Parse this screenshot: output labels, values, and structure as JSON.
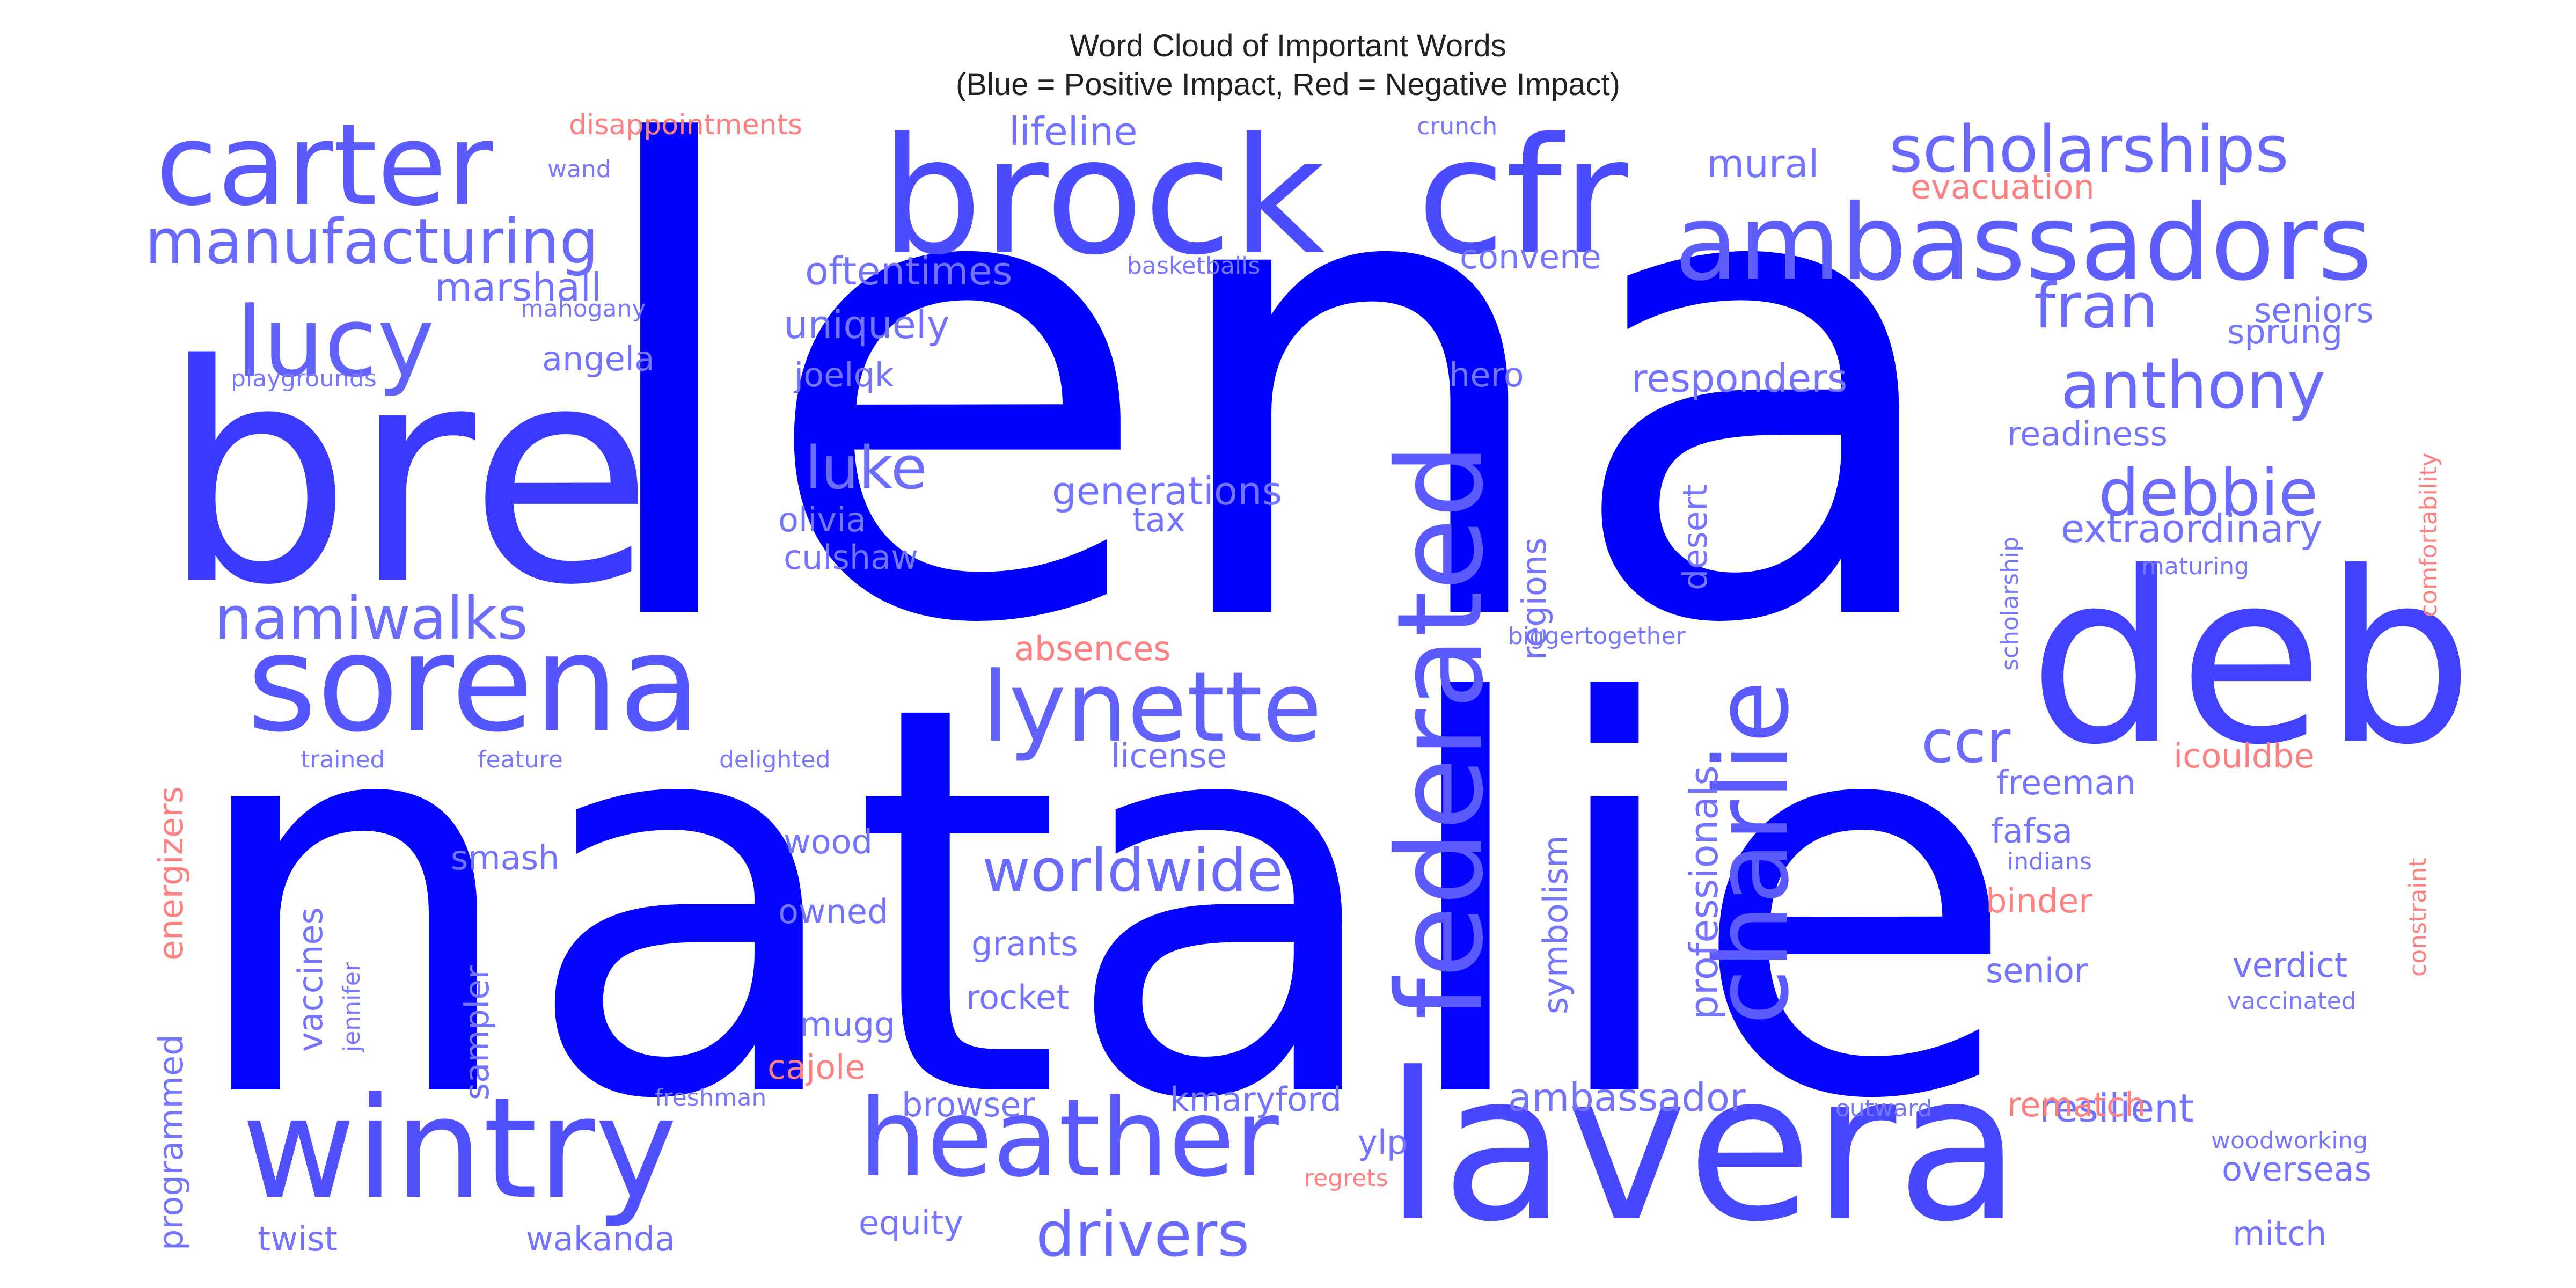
{
  "chart_data": {
    "type": "wordcloud",
    "title_line1": "Word Cloud of Important Words",
    "title_line2": "(Blue = Positive Impact, Red = Negative Impact)",
    "legend": {
      "positive_color": "#0000ff",
      "negative_color": "#ff8080"
    },
    "words": [
      {
        "text": "lena",
        "impact": "positive",
        "weight": 1.0
      },
      {
        "text": "natalie",
        "impact": "positive",
        "weight": 0.97
      },
      {
        "text": "bre",
        "impact": "positive",
        "weight": 0.55
      },
      {
        "text": "deb",
        "impact": "positive",
        "weight": 0.5
      },
      {
        "text": "lavera",
        "impact": "positive",
        "weight": 0.45
      },
      {
        "text": "brock",
        "impact": "positive",
        "weight": 0.42
      },
      {
        "text": "cfr",
        "impact": "positive",
        "weight": 0.42
      },
      {
        "text": "wintry",
        "impact": "positive",
        "weight": 0.38
      },
      {
        "text": "sorena",
        "impact": "positive",
        "weight": 0.33
      },
      {
        "text": "federated",
        "impact": "positive",
        "weight": 0.3
      },
      {
        "text": "charlie",
        "impact": "positive",
        "weight": 0.3
      },
      {
        "text": "carter",
        "impact": "positive",
        "weight": 0.3
      },
      {
        "text": "heather",
        "impact": "positive",
        "weight": 0.3
      },
      {
        "text": "ambassadors",
        "impact": "positive",
        "weight": 0.27
      },
      {
        "text": "lucy",
        "impact": "positive",
        "weight": 0.25
      },
      {
        "text": "lynette",
        "impact": "positive",
        "weight": 0.25
      },
      {
        "text": "scholarships",
        "impact": "positive",
        "weight": 0.19
      },
      {
        "text": "manufacturing",
        "impact": "positive",
        "weight": 0.18
      },
      {
        "text": "anthony",
        "impact": "positive",
        "weight": 0.18
      },
      {
        "text": "debbie",
        "impact": "positive",
        "weight": 0.18
      },
      {
        "text": "fran",
        "impact": "positive",
        "weight": 0.18
      },
      {
        "text": "drivers",
        "impact": "positive",
        "weight": 0.17
      },
      {
        "text": "worldwide",
        "impact": "positive",
        "weight": 0.17
      },
      {
        "text": "namiwalks",
        "impact": "positive",
        "weight": 0.16
      },
      {
        "text": "luke",
        "impact": "positive",
        "weight": 0.16
      },
      {
        "text": "ccr",
        "impact": "positive",
        "weight": 0.16
      },
      {
        "text": "extraordinary",
        "impact": "positive",
        "weight": 0.11
      },
      {
        "text": "generations",
        "impact": "positive",
        "weight": 0.11
      },
      {
        "text": "responders",
        "impact": "positive",
        "weight": 0.11
      },
      {
        "text": "resilient",
        "impact": "positive",
        "weight": 0.11
      },
      {
        "text": "ambassador",
        "impact": "positive",
        "weight": 0.11
      },
      {
        "text": "professionals",
        "impact": "positive",
        "weight": 0.11
      },
      {
        "text": "marshall",
        "impact": "positive",
        "weight": 0.11
      },
      {
        "text": "uniquely",
        "impact": "positive",
        "weight": 0.11
      },
      {
        "text": "oftentimes",
        "impact": "positive",
        "weight": 0.11
      },
      {
        "text": "lifeline",
        "impact": "positive",
        "weight": 0.11
      },
      {
        "text": "mural",
        "impact": "positive",
        "weight": 0.11
      },
      {
        "text": "convene",
        "impact": "positive",
        "weight": 0.1
      },
      {
        "text": "seniors",
        "impact": "positive",
        "weight": 0.1
      },
      {
        "text": "sprung",
        "impact": "positive",
        "weight": 0.1
      },
      {
        "text": "readiness",
        "impact": "positive",
        "weight": 0.1
      },
      {
        "text": "angela",
        "impact": "positive",
        "weight": 0.1
      },
      {
        "text": "joelqk",
        "impact": "positive",
        "weight": 0.1
      },
      {
        "text": "olivia",
        "impact": "positive",
        "weight": 0.1
      },
      {
        "text": "tax",
        "impact": "positive",
        "weight": 0.1
      },
      {
        "text": "culshaw",
        "impact": "positive",
        "weight": 0.1
      },
      {
        "text": "hero",
        "impact": "positive",
        "weight": 0.1
      },
      {
        "text": "regions",
        "impact": "positive",
        "weight": 0.1
      },
      {
        "text": "desert",
        "impact": "positive",
        "weight": 0.1
      },
      {
        "text": "license",
        "impact": "positive",
        "weight": 0.1
      },
      {
        "text": "freeman",
        "impact": "positive",
        "weight": 0.1
      },
      {
        "text": "fafsa",
        "impact": "positive",
        "weight": 0.1
      },
      {
        "text": "symbolism",
        "impact": "positive",
        "weight": 0.1
      },
      {
        "text": "smash",
        "impact": "positive",
        "weight": 0.1
      },
      {
        "text": "wood",
        "impact": "positive",
        "weight": 0.1
      },
      {
        "text": "owned",
        "impact": "positive",
        "weight": 0.1
      },
      {
        "text": "grants",
        "impact": "positive",
        "weight": 0.1
      },
      {
        "text": "rocket",
        "impact": "positive",
        "weight": 0.1
      },
      {
        "text": "mugg",
        "impact": "positive",
        "weight": 0.1
      },
      {
        "text": "browser",
        "impact": "positive",
        "weight": 0.1
      },
      {
        "text": "kmaryford",
        "impact": "positive",
        "weight": 0.1
      },
      {
        "text": "ylp",
        "impact": "positive",
        "weight": 0.1
      },
      {
        "text": "equity",
        "impact": "positive",
        "weight": 0.1
      },
      {
        "text": "wakanda",
        "impact": "positive",
        "weight": 0.1
      },
      {
        "text": "twist",
        "impact": "positive",
        "weight": 0.1
      },
      {
        "text": "senior",
        "impact": "positive",
        "weight": 0.1
      },
      {
        "text": "verdict",
        "impact": "positive",
        "weight": 0.1
      },
      {
        "text": "overseas",
        "impact": "positive",
        "weight": 0.1
      },
      {
        "text": "mitch",
        "impact": "positive",
        "weight": 0.1
      },
      {
        "text": "vaccines",
        "impact": "positive",
        "weight": 0.1
      },
      {
        "text": "sampler",
        "impact": "positive",
        "weight": 0.1
      },
      {
        "text": "programmed",
        "impact": "positive",
        "weight": 0.1
      },
      {
        "text": "scholarship",
        "impact": "positive",
        "weight": 0.07
      },
      {
        "text": "maturing",
        "impact": "positive",
        "weight": 0.07
      },
      {
        "text": "indians",
        "impact": "positive",
        "weight": 0.07
      },
      {
        "text": "vaccinated",
        "impact": "positive",
        "weight": 0.07
      },
      {
        "text": "woodworking",
        "impact": "positive",
        "weight": 0.07
      },
      {
        "text": "outward",
        "impact": "positive",
        "weight": 0.07
      },
      {
        "text": "freshman",
        "impact": "positive",
        "weight": 0.07
      },
      {
        "text": "jennifer",
        "impact": "positive",
        "weight": 0.07
      },
      {
        "text": "trained",
        "impact": "positive",
        "weight": 0.07
      },
      {
        "text": "feature",
        "impact": "positive",
        "weight": 0.07
      },
      {
        "text": "delighted",
        "impact": "positive",
        "weight": 0.07
      },
      {
        "text": "biggertogether",
        "impact": "positive",
        "weight": 0.07
      },
      {
        "text": "basketballs",
        "impact": "positive",
        "weight": 0.07
      },
      {
        "text": "crunch",
        "impact": "positive",
        "weight": 0.07
      },
      {
        "text": "wand",
        "impact": "positive",
        "weight": 0.07
      },
      {
        "text": "mahogany",
        "impact": "positive",
        "weight": 0.07
      },
      {
        "text": "playgrounds",
        "impact": "positive",
        "weight": 0.07
      },
      {
        "text": "disappointments",
        "impact": "negative",
        "weight": 0.07
      },
      {
        "text": "evacuation",
        "impact": "negative",
        "weight": 0.1
      },
      {
        "text": "comfortability",
        "impact": "negative",
        "weight": 0.07
      },
      {
        "text": "absences",
        "impact": "negative",
        "weight": 0.1
      },
      {
        "text": "icouldbe",
        "impact": "negative",
        "weight": 0.1
      },
      {
        "text": "constraint",
        "impact": "negative",
        "weight": 0.07
      },
      {
        "text": "binder",
        "impact": "negative",
        "weight": 0.1
      },
      {
        "text": "energizers",
        "impact": "negative",
        "weight": 0.1
      },
      {
        "text": "cajole",
        "impact": "negative",
        "weight": 0.1
      },
      {
        "text": "rematch",
        "impact": "negative",
        "weight": 0.1
      },
      {
        "text": "regrets",
        "impact": "negative",
        "weight": 0.07
      }
    ]
  }
}
